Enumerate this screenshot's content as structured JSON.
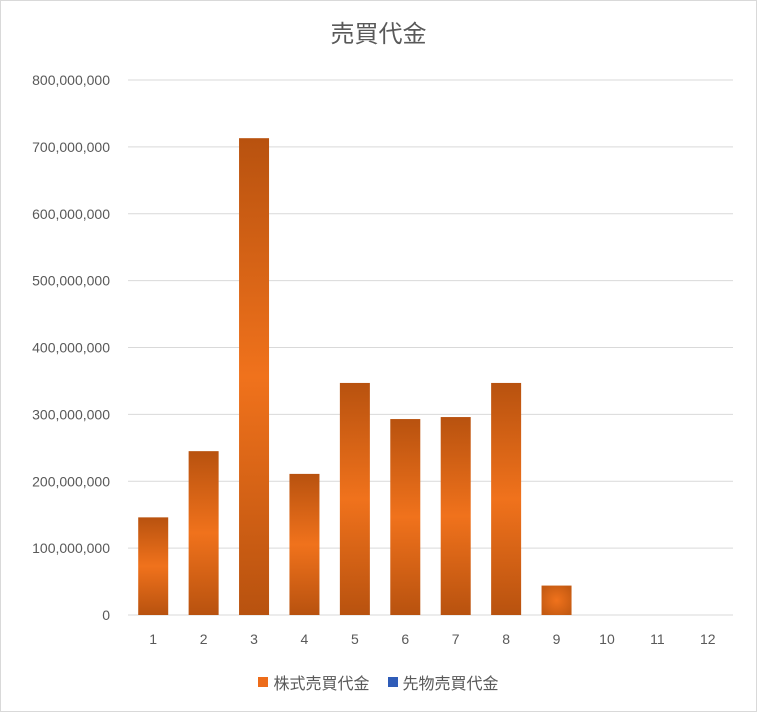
{
  "chart_data": {
    "type": "bar",
    "title": "売買代金",
    "xlabel": "",
    "ylabel": "",
    "categories": [
      "1",
      "2",
      "3",
      "4",
      "5",
      "6",
      "7",
      "8",
      "9",
      "10",
      "11",
      "12"
    ],
    "series": [
      {
        "name": "株式売買代金",
        "color": "#ed6c1a",
        "values": [
          146000000,
          245000000,
          713000000,
          211000000,
          347000000,
          293000000,
          296000000,
          347000000,
          44000000,
          0,
          0,
          0
        ]
      },
      {
        "name": "先物売買代金",
        "color": "#2f5cb8",
        "values": [
          0,
          0,
          0,
          0,
          0,
          0,
          0,
          0,
          0,
          0,
          0,
          0
        ]
      }
    ],
    "ylim": [
      0,
      800000000
    ],
    "yticks": [
      "800,000,000",
      "700,000,000",
      "600,000,000",
      "500,000,000",
      "400,000,000",
      "300,000,000",
      "200,000,000",
      "100,000,000",
      "0"
    ],
    "grid": true,
    "legend_position": "bottom"
  }
}
